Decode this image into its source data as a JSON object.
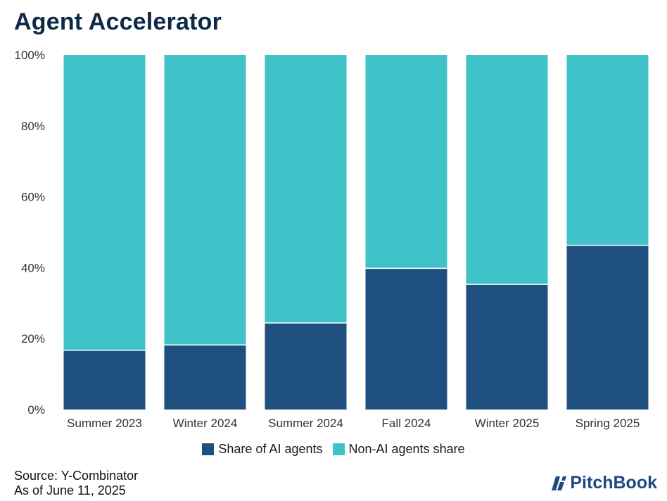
{
  "title": "Agent Accelerator",
  "chart_data": {
    "type": "bar",
    "stacked": true,
    "title": "Agent Accelerator",
    "categories": [
      "Summer 2023",
      "Winter 2024",
      "Summer 2024",
      "Fall 2024",
      "Winter 2025",
      "Spring 2025"
    ],
    "series": [
      {
        "name": "Share of AI agents",
        "color": "#1e4f7e",
        "values": [
          16.7,
          18.2,
          24.4,
          39.8,
          35.3,
          46.3
        ]
      },
      {
        "name": "Non-AI agents share",
        "color": "#3fc3c8",
        "values": [
          83.3,
          81.8,
          75.6,
          60.2,
          64.7,
          53.7
        ]
      }
    ],
    "ylim": [
      0,
      100
    ],
    "yticks": [
      0,
      20,
      40,
      60,
      80,
      100
    ],
    "ytick_labels": [
      "0%",
      "20%",
      "40%",
      "60%",
      "80%",
      "100%"
    ],
    "xlabel": "",
    "ylabel": "",
    "grid": false,
    "legend_position": "bottom"
  },
  "legend": {
    "ai": "Share of AI agents",
    "non_ai": "Non-AI agents share"
  },
  "footer": {
    "source": "Source: Y-Combinator",
    "as_of": "As of June 11, 2025"
  },
  "logo": {
    "text": "PitchBook"
  }
}
